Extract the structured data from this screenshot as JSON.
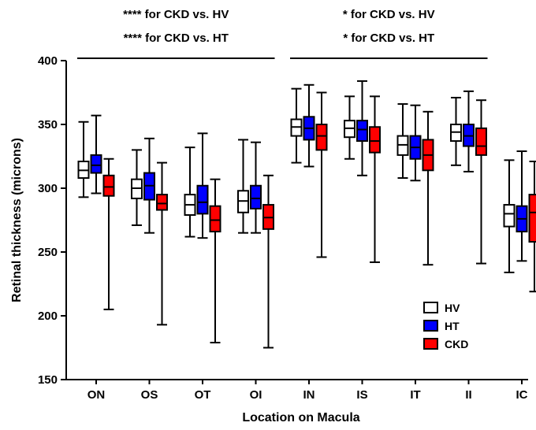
{
  "chart_data": {
    "type": "box",
    "xlabel": "Location on Macula",
    "ylabel": "Retinal thickness (microns)",
    "ylim": [
      150,
      400
    ],
    "yticks": [
      150,
      200,
      250,
      300,
      350,
      400
    ],
    "categories": [
      "ON",
      "OS",
      "OT",
      "OI",
      "IN",
      "IS",
      "IT",
      "II",
      "IC"
    ],
    "series": [
      {
        "name": "HV",
        "color": "#ffffff",
        "boxes": [
          {
            "min": 293,
            "q1": 308,
            "median": 314,
            "q3": 321,
            "max": 352
          },
          {
            "min": 271,
            "q1": 292,
            "median": 300,
            "q3": 307,
            "max": 330
          },
          {
            "min": 262,
            "q1": 279,
            "median": 287,
            "q3": 295,
            "max": 332
          },
          {
            "min": 265,
            "q1": 281,
            "median": 290,
            "q3": 298,
            "max": 338
          },
          {
            "min": 320,
            "q1": 341,
            "median": 348,
            "q3": 354,
            "max": 378
          },
          {
            "min": 323,
            "q1": 340,
            "median": 347,
            "q3": 353,
            "max": 372
          },
          {
            "min": 308,
            "q1": 326,
            "median": 334,
            "q3": 341,
            "max": 366
          },
          {
            "min": 318,
            "q1": 337,
            "median": 344,
            "q3": 350,
            "max": 371
          },
          {
            "min": 234,
            "q1": 270,
            "median": 280,
            "q3": 287,
            "max": 322
          }
        ]
      },
      {
        "name": "HT",
        "color": "#0000ff",
        "boxes": [
          {
            "min": 296,
            "q1": 312,
            "median": 318,
            "q3": 326,
            "max": 357
          },
          {
            "min": 265,
            "q1": 291,
            "median": 302,
            "q3": 312,
            "max": 339
          },
          {
            "min": 261,
            "q1": 280,
            "median": 289,
            "q3": 302,
            "max": 343
          },
          {
            "min": 265,
            "q1": 284,
            "median": 292,
            "q3": 302,
            "max": 336
          },
          {
            "min": 317,
            "q1": 338,
            "median": 347,
            "q3": 356,
            "max": 381
          },
          {
            "min": 310,
            "q1": 337,
            "median": 346,
            "q3": 353,
            "max": 384
          },
          {
            "min": 306,
            "q1": 323,
            "median": 332,
            "q3": 341,
            "max": 365
          },
          {
            "min": 313,
            "q1": 333,
            "median": 341,
            "q3": 350,
            "max": 376
          },
          {
            "min": 243,
            "q1": 266,
            "median": 276,
            "q3": 286,
            "max": 329
          }
        ]
      },
      {
        "name": "CKD",
        "color": "#ff0000",
        "boxes": [
          {
            "min": 205,
            "q1": 294,
            "median": 301,
            "q3": 310,
            "max": 323
          },
          {
            "min": 193,
            "q1": 283,
            "median": 288,
            "q3": 295,
            "max": 320
          },
          {
            "min": 179,
            "q1": 266,
            "median": 275,
            "q3": 286,
            "max": 307
          },
          {
            "min": 175,
            "q1": 268,
            "median": 277,
            "q3": 287,
            "max": 310
          },
          {
            "min": 246,
            "q1": 330,
            "median": 341,
            "q3": 350,
            "max": 375
          },
          {
            "min": 242,
            "q1": 328,
            "median": 337,
            "q3": 348,
            "max": 372
          },
          {
            "min": 240,
            "q1": 314,
            "median": 326,
            "q3": 338,
            "max": 360
          },
          {
            "min": 241,
            "q1": 326,
            "median": 333,
            "q3": 347,
            "max": 369
          },
          {
            "min": 219,
            "q1": 258,
            "median": 281,
            "q3": 295,
            "max": 321
          }
        ]
      }
    ],
    "annotations": [
      {
        "lines": [
          "**** for CKD vs. HV",
          "**** for CKD vs. HT"
        ],
        "spans": [
          "ON",
          "OI"
        ]
      },
      {
        "lines": [
          "* for CKD vs. HV",
          "* for CKD vs. HT"
        ],
        "spans": [
          "IN",
          "II"
        ]
      }
    ],
    "legend": {
      "position": "bottom-right",
      "entries": [
        "HV",
        "HT",
        "CKD"
      ]
    }
  }
}
